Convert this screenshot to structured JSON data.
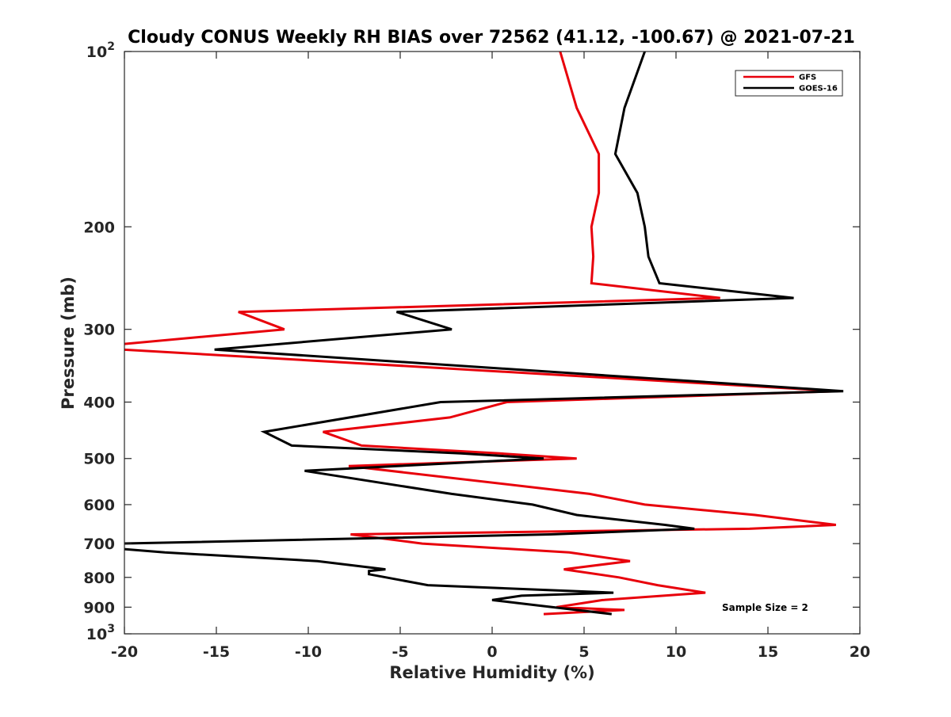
{
  "chart_data": {
    "type": "line",
    "title": "Cloudy CONUS Weekly RH BIAS over 72562 (41.12, -100.67) @ 2021-07-21",
    "xlabel": "Relative Humidity (%)",
    "ylabel": "Pressure (mb)",
    "xlim": [
      -20,
      20
    ],
    "ylim": [
      100,
      1000
    ],
    "y_scale": "log",
    "y_reversed": true,
    "grid": false,
    "legend_position": "top-right",
    "x_ticks": [
      "-20",
      "-15",
      "-10",
      "-5",
      "0",
      "5",
      "10",
      "15",
      "20"
    ],
    "y_ticks": [
      {
        "base": "10",
        "exp": "2"
      },
      {
        "base": "200",
        "exp": ""
      },
      {
        "base": "300",
        "exp": ""
      },
      {
        "base": "400",
        "exp": ""
      },
      {
        "base": "500",
        "exp": ""
      },
      {
        "base": "600",
        "exp": ""
      },
      {
        "base": "700",
        "exp": ""
      },
      {
        "base": "800",
        "exp": ""
      },
      {
        "base": "900",
        "exp": ""
      },
      {
        "base": "10",
        "exp": "3"
      }
    ],
    "annotation": "Sample Size = 2",
    "series": [
      {
        "name": "GFS",
        "color": "#e8000b",
        "points": [
          {
            "x": 3.7,
            "y": 100
          },
          {
            "x": 4.6,
            "y": 125
          },
          {
            "x": 5.8,
            "y": 150
          },
          {
            "x": 5.8,
            "y": 175
          },
          {
            "x": 5.4,
            "y": 200
          },
          {
            "x": 5.5,
            "y": 225
          },
          {
            "x": 5.4,
            "y": 250
          },
          {
            "x": 12.4,
            "y": 265
          },
          {
            "x": -13.8,
            "y": 280
          },
          {
            "x": -11.3,
            "y": 300
          },
          {
            "x": -20.1,
            "y": 318
          },
          {
            "x": -20.1,
            "y": 325
          },
          {
            "x": 18.8,
            "y": 383
          },
          {
            "x": 0.8,
            "y": 400
          },
          {
            "x": -2.3,
            "y": 425
          },
          {
            "x": -9.2,
            "y": 450
          },
          {
            "x": -7.1,
            "y": 475
          },
          {
            "x": 0.4,
            "y": 490
          },
          {
            "x": 4.6,
            "y": 500
          },
          {
            "x": -7.8,
            "y": 515
          },
          {
            "x": 5.3,
            "y": 575
          },
          {
            "x": 8.3,
            "y": 600
          },
          {
            "x": 14.3,
            "y": 625
          },
          {
            "x": 18.7,
            "y": 650
          },
          {
            "x": 14.0,
            "y": 660
          },
          {
            "x": -7.7,
            "y": 675
          },
          {
            "x": -3.8,
            "y": 700
          },
          {
            "x": 4.2,
            "y": 725
          },
          {
            "x": 7.5,
            "y": 750
          },
          {
            "x": 3.9,
            "y": 775
          },
          {
            "x": 6.9,
            "y": 800
          },
          {
            "x": 9.0,
            "y": 825
          },
          {
            "x": 11.6,
            "y": 850
          },
          {
            "x": 6.0,
            "y": 875
          },
          {
            "x": 3.5,
            "y": 900
          },
          {
            "x": 7.2,
            "y": 910
          },
          {
            "x": 2.8,
            "y": 925
          }
        ]
      },
      {
        "name": "GOES-16",
        "color": "#000000",
        "points": [
          {
            "x": 8.3,
            "y": 100
          },
          {
            "x": 7.2,
            "y": 125
          },
          {
            "x": 6.7,
            "y": 150
          },
          {
            "x": 7.9,
            "y": 175
          },
          {
            "x": 8.3,
            "y": 200
          },
          {
            "x": 8.5,
            "y": 225
          },
          {
            "x": 9.1,
            "y": 250
          },
          {
            "x": 16.4,
            "y": 265
          },
          {
            "x": -5.2,
            "y": 280
          },
          {
            "x": -2.2,
            "y": 300
          },
          {
            "x": -15.1,
            "y": 325
          },
          {
            "x": 19.1,
            "y": 383
          },
          {
            "x": -2.8,
            "y": 400
          },
          {
            "x": -12.4,
            "y": 450
          },
          {
            "x": -10.9,
            "y": 475
          },
          {
            "x": -1.7,
            "y": 490
          },
          {
            "x": 2.8,
            "y": 500
          },
          {
            "x": -10.2,
            "y": 525
          },
          {
            "x": -2.2,
            "y": 575
          },
          {
            "x": 2.2,
            "y": 600
          },
          {
            "x": 4.6,
            "y": 625
          },
          {
            "x": 9.4,
            "y": 650
          },
          {
            "x": 11.0,
            "y": 660
          },
          {
            "x": 3.2,
            "y": 675
          },
          {
            "x": -20.1,
            "y": 700
          },
          {
            "x": -20.1,
            "y": 715
          },
          {
            "x": -17.8,
            "y": 725
          },
          {
            "x": -9.5,
            "y": 750
          },
          {
            "x": -5.8,
            "y": 775
          },
          {
            "x": -6.7,
            "y": 780
          },
          {
            "x": -6.7,
            "y": 790
          },
          {
            "x": -3.5,
            "y": 825
          },
          {
            "x": 6.6,
            "y": 850
          },
          {
            "x": 1.6,
            "y": 860
          },
          {
            "x": 0.0,
            "y": 875
          },
          {
            "x": 6.5,
            "y": 925
          }
        ]
      }
    ]
  }
}
